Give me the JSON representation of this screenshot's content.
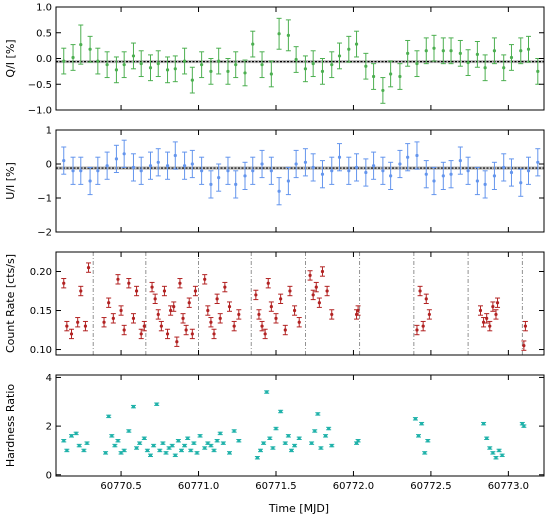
{
  "figure": {
    "xlabel": "Time [MJD]",
    "xticks": [
      60770.5,
      60771.0,
      60771.5,
      60772.0,
      60772.5,
      60773.0
    ],
    "xtick_labels": [
      "60770.5",
      "60771.0",
      "60771.5",
      "60772.0",
      "60772.5",
      "60773.0"
    ],
    "xlim": [
      60770.08,
      60773.23
    ]
  },
  "chart_data": [
    {
      "type": "scatter",
      "ylabel": "Q/I [%]",
      "ylim": [
        -1.0,
        1.0
      ],
      "yticks": [
        -1.0,
        -0.5,
        0.0,
        0.5,
        1.0
      ],
      "ytick_labels": [
        "−1.0",
        "−0.5",
        "0.0",
        "0.5",
        "1.0"
      ],
      "color": "#4caf50",
      "mean": -0.06,
      "band": [
        -0.09,
        -0.03
      ],
      "x": [
        60770.13,
        60770.19,
        60770.24,
        60770.3,
        60770.35,
        60770.41,
        60770.47,
        60770.52,
        60770.58,
        60770.63,
        60770.69,
        60770.74,
        60770.8,
        60770.85,
        60770.91,
        60770.96,
        60771.02,
        60771.08,
        60771.13,
        60771.19,
        60771.24,
        60771.3,
        60771.35,
        60771.41,
        60771.47,
        60771.52,
        60771.58,
        60771.63,
        60771.69,
        60771.74,
        60771.8,
        60771.86,
        60771.91,
        60771.97,
        60772.02,
        60772.08,
        60772.13,
        60772.19,
        60772.24,
        60772.3,
        60772.35,
        60772.41,
        60772.47,
        60772.52,
        60772.58,
        60772.63,
        60772.69,
        60772.74,
        60772.8,
        60772.85,
        60772.91,
        60772.97,
        60773.02,
        60773.08,
        60773.13,
        60773.19
      ],
      "y": [
        -0.05,
        0.02,
        0.27,
        0.18,
        -0.05,
        -0.12,
        -0.22,
        -0.12,
        0.05,
        -0.1,
        -0.18,
        -0.1,
        -0.22,
        -0.2,
        -0.05,
        -0.42,
        -0.12,
        -0.25,
        -0.05,
        -0.25,
        -0.12,
        -0.28,
        0.28,
        -0.12,
        -0.3,
        0.48,
        0.45,
        -0.02,
        -0.2,
        -0.1,
        -0.25,
        -0.12,
        0.05,
        0.18,
        0.28,
        -0.15,
        -0.35,
        -0.62,
        -0.3,
        -0.35,
        0.1,
        -0.1,
        0.15,
        0.2,
        0.15,
        0.15,
        0.1,
        -0.08,
        0.08,
        -0.18,
        0.15,
        -0.18,
        0.02,
        0.15,
        0.18,
        -0.25
      ],
      "err": [
        0.25,
        0.25,
        0.38,
        0.25,
        0.25,
        0.25,
        0.25,
        0.25,
        0.25,
        0.25,
        0.25,
        0.25,
        0.25,
        0.25,
        0.25,
        0.25,
        0.25,
        0.25,
        0.25,
        0.25,
        0.25,
        0.25,
        0.25,
        0.25,
        0.25,
        0.3,
        0.3,
        0.25,
        0.25,
        0.25,
        0.25,
        0.25,
        0.25,
        0.25,
        0.25,
        0.25,
        0.25,
        0.25,
        0.25,
        0.25,
        0.25,
        0.25,
        0.25,
        0.25,
        0.25,
        0.25,
        0.25,
        0.25,
        0.25,
        0.25,
        0.25,
        0.25,
        0.25,
        0.25,
        0.25,
        0.25
      ]
    },
    {
      "type": "scatter",
      "ylabel": "U/I [%]",
      "ylim": [
        -2.0,
        1.0
      ],
      "yticks": [
        -2,
        -1,
        0,
        1
      ],
      "ytick_labels": [
        "−2",
        "−1",
        "0",
        "1"
      ],
      "color": "#6495ed",
      "mean": -0.12,
      "band": [
        -0.17,
        -0.07
      ],
      "x": [
        60770.13,
        60770.19,
        60770.24,
        60770.3,
        60770.35,
        60770.41,
        60770.47,
        60770.52,
        60770.58,
        60770.63,
        60770.69,
        60770.74,
        60770.8,
        60770.85,
        60770.91,
        60770.96,
        60771.02,
        60771.08,
        60771.13,
        60771.19,
        60771.24,
        60771.3,
        60771.35,
        60771.41,
        60771.47,
        60771.52,
        60771.58,
        60771.63,
        60771.69,
        60771.74,
        60771.8,
        60771.86,
        60771.91,
        60771.97,
        60772.02,
        60772.08,
        60772.13,
        60772.19,
        60772.24,
        60772.3,
        60772.35,
        60772.41,
        60772.47,
        60772.52,
        60772.58,
        60772.63,
        60772.69,
        60772.74,
        60772.8,
        60772.85,
        60772.91,
        60772.97,
        60773.02,
        60773.08,
        60773.13,
        60773.19
      ],
      "y": [
        0.1,
        -0.2,
        -0.2,
        -0.5,
        -0.2,
        -0.05,
        0.15,
        0.3,
        -0.1,
        -0.2,
        -0.05,
        0.05,
        -0.05,
        0.25,
        -0.05,
        0.0,
        -0.2,
        -0.6,
        -0.4,
        -0.2,
        -0.6,
        -0.35,
        -0.2,
        0.0,
        -0.2,
        -0.8,
        -0.5,
        0.0,
        0.05,
        -0.1,
        -0.3,
        -0.2,
        0.2,
        -0.2,
        -0.1,
        -0.25,
        -0.05,
        -0.2,
        -0.35,
        0.0,
        0.2,
        0.25,
        -0.3,
        -0.5,
        -0.35,
        -0.3,
        0.1,
        -0.2,
        -0.5,
        -0.6,
        -0.35,
        -0.1,
        -0.25,
        -0.55,
        -0.2,
        0.05
      ],
      "err": [
        0.4,
        0.4,
        0.4,
        0.4,
        0.4,
        0.4,
        0.4,
        0.4,
        0.4,
        0.4,
        0.4,
        0.4,
        0.4,
        0.4,
        0.4,
        0.4,
        0.4,
        0.4,
        0.4,
        0.4,
        0.4,
        0.4,
        0.4,
        0.4,
        0.4,
        0.4,
        0.4,
        0.4,
        0.4,
        0.4,
        0.4,
        0.4,
        0.4,
        0.4,
        0.4,
        0.4,
        0.4,
        0.4,
        0.4,
        0.4,
        0.4,
        0.4,
        0.4,
        0.4,
        0.4,
        0.4,
        0.4,
        0.4,
        0.4,
        0.4,
        0.4,
        0.4,
        0.4,
        0.4,
        0.4,
        0.4
      ]
    },
    {
      "type": "scatter",
      "ylabel": "Count Rate [cts/s]",
      "ylim": [
        0.093,
        0.225
      ],
      "yticks": [
        0.1,
        0.15,
        0.2
      ],
      "ytick_labels": [
        "0.10",
        "0.15",
        "0.20"
      ],
      "color": "#b22222",
      "vlines": [
        60770.32,
        60770.66,
        60771.0,
        60771.34,
        60771.69,
        60772.04,
        60772.39,
        60772.74,
        60773.09
      ],
      "x": [
        60770.13,
        60770.15,
        60770.18,
        60770.22,
        60770.24,
        60770.27,
        60770.29,
        60770.39,
        60770.42,
        60770.45,
        60770.48,
        60770.5,
        60770.52,
        60770.55,
        60770.58,
        60770.6,
        60770.63,
        60770.65,
        60770.7,
        60770.72,
        60770.74,
        60770.76,
        60770.78,
        60770.8,
        60770.82,
        60770.84,
        60770.86,
        60770.88,
        60770.9,
        60770.92,
        60770.94,
        60770.96,
        60770.98,
        60771.04,
        60771.06,
        60771.08,
        60771.1,
        60771.12,
        60771.14,
        60771.17,
        60771.2,
        60771.23,
        60771.26,
        60771.37,
        60771.39,
        60771.41,
        60771.43,
        60771.45,
        60771.47,
        60771.5,
        60771.53,
        60771.56,
        60771.59,
        60771.62,
        60771.65,
        60771.72,
        60771.74,
        60771.76,
        60771.78,
        60771.8,
        60771.83,
        60771.86,
        60772.02,
        60772.03,
        60772.41,
        60772.43,
        60772.45,
        60772.47,
        60772.49,
        60772.82,
        60772.84,
        60772.86,
        60772.88,
        60772.9,
        60772.92,
        60772.93,
        60773.1,
        60773.11
      ],
      "y": [
        0.185,
        0.13,
        0.12,
        0.135,
        0.175,
        0.13,
        0.205,
        0.135,
        0.16,
        0.14,
        0.19,
        0.15,
        0.125,
        0.185,
        0.14,
        0.175,
        0.12,
        0.13,
        0.18,
        0.165,
        0.145,
        0.13,
        0.175,
        0.12,
        0.15,
        0.155,
        0.11,
        0.185,
        0.14,
        0.125,
        0.16,
        0.12,
        0.175,
        0.19,
        0.15,
        0.135,
        0.12,
        0.165,
        0.14,
        0.18,
        0.155,
        0.13,
        0.145,
        0.17,
        0.145,
        0.13,
        0.12,
        0.185,
        0.155,
        0.14,
        0.165,
        0.125,
        0.175,
        0.15,
        0.135,
        0.195,
        0.17,
        0.18,
        0.16,
        0.2,
        0.175,
        0.145,
        0.145,
        0.15,
        0.125,
        0.175,
        0.13,
        0.165,
        0.145,
        0.15,
        0.135,
        0.14,
        0.13,
        0.155,
        0.145,
        0.16,
        0.105,
        0.13
      ],
      "err": [
        0.006,
        0.006,
        0.006,
        0.006,
        0.006,
        0.006,
        0.006,
        0.006,
        0.006,
        0.006,
        0.006,
        0.006,
        0.006,
        0.006,
        0.006,
        0.006,
        0.006,
        0.006,
        0.006,
        0.006,
        0.006,
        0.006,
        0.006,
        0.006,
        0.006,
        0.006,
        0.006,
        0.006,
        0.006,
        0.006,
        0.006,
        0.006,
        0.006,
        0.006,
        0.006,
        0.006,
        0.006,
        0.006,
        0.006,
        0.006,
        0.006,
        0.006,
        0.006,
        0.006,
        0.006,
        0.006,
        0.006,
        0.006,
        0.006,
        0.006,
        0.006,
        0.006,
        0.006,
        0.006,
        0.006,
        0.006,
        0.006,
        0.006,
        0.006,
        0.006,
        0.006,
        0.006,
        0.006,
        0.006,
        0.006,
        0.006,
        0.006,
        0.006,
        0.006,
        0.006,
        0.006,
        0.006,
        0.006,
        0.006,
        0.006,
        0.006,
        0.006,
        0.006
      ]
    },
    {
      "type": "scatter",
      "ylabel": "Hardness Ratio",
      "ylim": [
        -0.05,
        4.1
      ],
      "yticks": [
        0,
        2,
        4
      ],
      "ytick_labels": [
        "0",
        "2",
        "4"
      ],
      "color": "#20b2aa",
      "x": [
        60770.13,
        60770.15,
        60770.18,
        60770.21,
        60770.23,
        60770.26,
        60770.28,
        60770.4,
        60770.42,
        60770.44,
        60770.46,
        60770.48,
        60770.5,
        60770.52,
        60770.55,
        60770.58,
        60770.6,
        60770.62,
        60770.65,
        60770.67,
        60770.69,
        60770.71,
        60770.73,
        60770.75,
        60770.77,
        60770.79,
        60770.81,
        60770.83,
        60770.85,
        60770.87,
        60770.89,
        60770.91,
        60770.93,
        60770.95,
        60770.97,
        60770.99,
        60771.01,
        60771.04,
        60771.06,
        60771.08,
        60771.1,
        60771.12,
        60771.14,
        60771.16,
        60771.2,
        60771.23,
        60771.26,
        60771.38,
        60771.4,
        60771.42,
        60771.44,
        60771.46,
        60771.48,
        60771.5,
        60771.53,
        60771.56,
        60771.58,
        60771.6,
        60771.62,
        60771.65,
        60771.73,
        60771.75,
        60771.77,
        60771.79,
        60771.82,
        60771.84,
        60771.86,
        60772.02,
        60772.03,
        60772.4,
        60772.42,
        60772.44,
        60772.46,
        60772.48,
        60772.84,
        60772.86,
        60772.88,
        60772.9,
        60772.92,
        60772.94,
        60772.96,
        60773.09,
        60773.1
      ],
      "y": [
        1.4,
        1.0,
        1.6,
        1.7,
        1.2,
        1.0,
        1.3,
        0.9,
        2.4,
        1.6,
        1.2,
        1.4,
        0.9,
        1.0,
        1.8,
        2.8,
        1.1,
        1.3,
        1.5,
        1.0,
        0.8,
        1.2,
        2.9,
        1.0,
        1.3,
        0.9,
        1.1,
        1.2,
        0.8,
        1.4,
        1.0,
        1.2,
        1.5,
        1.0,
        1.3,
        0.9,
        1.6,
        1.1,
        1.3,
        1.2,
        1.0,
        1.4,
        1.7,
        1.3,
        0.9,
        1.8,
        1.4,
        0.7,
        1.0,
        1.3,
        3.4,
        1.5,
        1.1,
        1.9,
        2.6,
        1.3,
        1.6,
        1.0,
        1.2,
        1.5,
        1.3,
        1.8,
        2.5,
        1.1,
        1.6,
        1.9,
        1.2,
        1.3,
        1.4,
        2.3,
        1.6,
        2.1,
        0.9,
        1.4,
        2.1,
        1.5,
        1.1,
        0.9,
        0.7,
        1.0,
        0.8,
        2.1,
        2.0
      ],
      "err": [
        0.05,
        0.05,
        0.05,
        0.05,
        0.05,
        0.05,
        0.05,
        0.05,
        0.05,
        0.05,
        0.05,
        0.05,
        0.05,
        0.05,
        0.05,
        0.05,
        0.05,
        0.05,
        0.05,
        0.05,
        0.05,
        0.05,
        0.05,
        0.05,
        0.05,
        0.05,
        0.05,
        0.05,
        0.05,
        0.05,
        0.05,
        0.05,
        0.05,
        0.05,
        0.05,
        0.05,
        0.05,
        0.05,
        0.05,
        0.05,
        0.05,
        0.05,
        0.05,
        0.05,
        0.05,
        0.05,
        0.05,
        0.05,
        0.05,
        0.05,
        0.05,
        0.05,
        0.05,
        0.05,
        0.05,
        0.05,
        0.05,
        0.05,
        0.05,
        0.05,
        0.05,
        0.05,
        0.05,
        0.05,
        0.05,
        0.05,
        0.05,
        0.05,
        0.05,
        0.05,
        0.05,
        0.05,
        0.05,
        0.05,
        0.05,
        0.05,
        0.05,
        0.05,
        0.05,
        0.05,
        0.05,
        0.05,
        0.05
      ]
    }
  ]
}
